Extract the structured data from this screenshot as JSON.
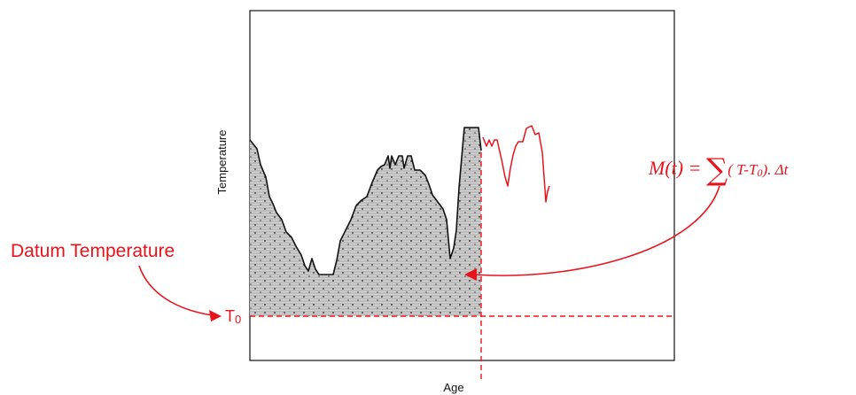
{
  "labels": {
    "x_axis": "Age",
    "y_axis": "Temperature",
    "datum": "Datum Temperature",
    "t0_main": "T",
    "t0_sub": "0"
  },
  "formula": {
    "lhs": "M(t) = ",
    "sigma": "∑",
    "open": "( T-T",
    "sub": "0",
    "rest": "). Δt"
  },
  "colors": {
    "accent": "#e8131b",
    "line": "#111111",
    "fill": "#c9c9c9",
    "frame": "#111111"
  }
}
